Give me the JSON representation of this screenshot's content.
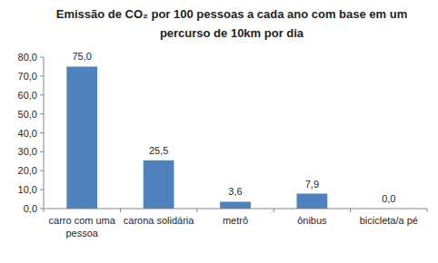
{
  "chart_data": {
    "type": "bar",
    "title": "Emissão de CO₂ por 100 pessoas a cada ano com base em um percurso de 10km por dia",
    "categories": [
      "carro com uma pessoa",
      "carona solidária",
      "metrô",
      "ônibus",
      "bicicleta/a pé"
    ],
    "values": [
      75.0,
      25.5,
      3.6,
      7.9,
      0.0
    ],
    "value_labels": [
      "75,0",
      "25,5",
      "3,6",
      "7,9",
      "0,0"
    ],
    "color": "#4f81bd",
    "ylim": [
      0,
      80
    ],
    "yticks": [
      {
        "value": 0,
        "label": "0,0"
      },
      {
        "value": 10,
        "label": "10,0"
      },
      {
        "value": 20,
        "label": "20,0"
      },
      {
        "value": 30,
        "label": "30,0"
      },
      {
        "value": 40,
        "label": "40,0"
      },
      {
        "value": 50,
        "label": "50,0"
      },
      {
        "value": 60,
        "label": "60,0"
      },
      {
        "value": 70,
        "label": "70,0"
      },
      {
        "value": 80,
        "label": "80,0"
      }
    ],
    "grid": false,
    "data_labels": true
  }
}
